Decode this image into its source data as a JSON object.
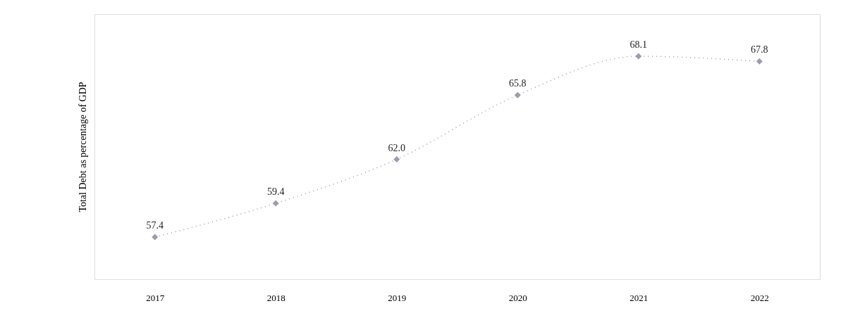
{
  "chart_data": {
    "type": "line",
    "ylabel": "Total Debt as percentage of GDP",
    "categories": [
      "2017",
      "2018",
      "2019",
      "2020",
      "2021",
      "2022"
    ],
    "series": [
      {
        "color": "#9c9cac",
        "values": [
          57.4,
          59.4,
          62.0,
          65.8,
          68.1,
          67.8
        ],
        "value_labels": [
          "57.4",
          "59.4",
          "62.0",
          "65.8",
          "68.1",
          "67.8"
        ]
      }
    ],
    "marker": "diamond",
    "line_style": "dotted",
    "grid": false,
    "legend": false,
    "tick_labels": "x"
  }
}
